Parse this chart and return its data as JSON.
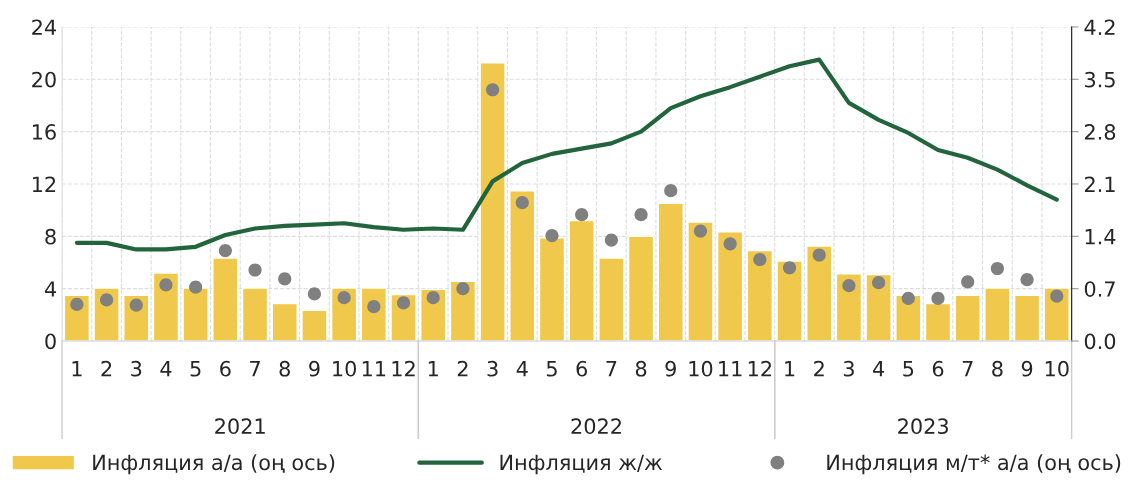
{
  "chart_data": {
    "type": "bar",
    "categories": [
      "1",
      "2",
      "3",
      "4",
      "5",
      "6",
      "7",
      "8",
      "9",
      "10",
      "11",
      "12",
      "1",
      "2",
      "3",
      "4",
      "5",
      "6",
      "7",
      "8",
      "9",
      "10",
      "11",
      "12",
      "1",
      "2",
      "3",
      "4",
      "5",
      "6",
      "7",
      "8",
      "9",
      "10"
    ],
    "series": [
      {
        "name": "Инфляция а/а (оң ось)",
        "axis": "y2",
        "color": "#f0c84b",
        "values": [
          0.61,
          0.71,
          0.61,
          0.91,
          0.71,
          1.11,
          0.71,
          0.5,
          0.41,
          0.71,
          0.71,
          0.62,
          0.69,
          0.8,
          3.72,
          2.01,
          1.38,
          1.61,
          1.11,
          1.4,
          1.84,
          1.59,
          1.46,
          1.21,
          1.07,
          1.27,
          0.9,
          0.89,
          0.61,
          0.5,
          0.61,
          0.71,
          0.61,
          0.71
        ]
      },
      {
        "name": "Инфляция ж/ж",
        "type": "line",
        "color": "#22643c",
        "line_style": "solid",
        "marker": "none",
        "values": [
          7.5,
          7.5,
          7.0,
          7.0,
          7.2,
          8.1,
          8.6,
          8.8,
          8.9,
          9.0,
          8.7,
          8.5,
          8.6,
          8.5,
          12.2,
          13.6,
          14.3,
          14.7,
          15.1,
          16.0,
          17.8,
          18.7,
          19.4,
          20.2,
          21.0,
          21.5,
          18.2,
          16.9,
          15.9,
          14.6,
          14.0,
          13.1,
          11.9,
          10.8
        ]
      },
      {
        "name": "Инфляция м/т* а/а (оң ось)",
        "type": "scatter",
        "axis": "y2",
        "color": "#808080",
        "marker": "circle",
        "values": [
          0.49,
          0.55,
          0.48,
          0.75,
          0.72,
          1.21,
          0.95,
          0.83,
          0.63,
          0.58,
          0.46,
          0.51,
          0.58,
          0.7,
          3.36,
          1.85,
          1.41,
          1.69,
          1.35,
          1.69,
          2.01,
          1.47,
          1.3,
          1.09,
          0.98,
          1.15,
          0.74,
          0.78,
          0.57,
          0.57,
          0.79,
          0.97,
          0.82,
          0.6
        ]
      }
    ],
    "ylim": [
      0,
      24
    ],
    "yticks": [
      0,
      4,
      8,
      12,
      16,
      20,
      24
    ],
    "y2lim": [
      0,
      4.2
    ],
    "y2ticks": [
      {
        "value": 0,
        "label": "0.0"
      },
      0.7,
      1.4,
      2.1,
      2.8,
      3.5,
      4.2
    ],
    "annotations": [
      "2021",
      "2022",
      "2023"
    ],
    "grid": true,
    "legend": "bottom"
  }
}
